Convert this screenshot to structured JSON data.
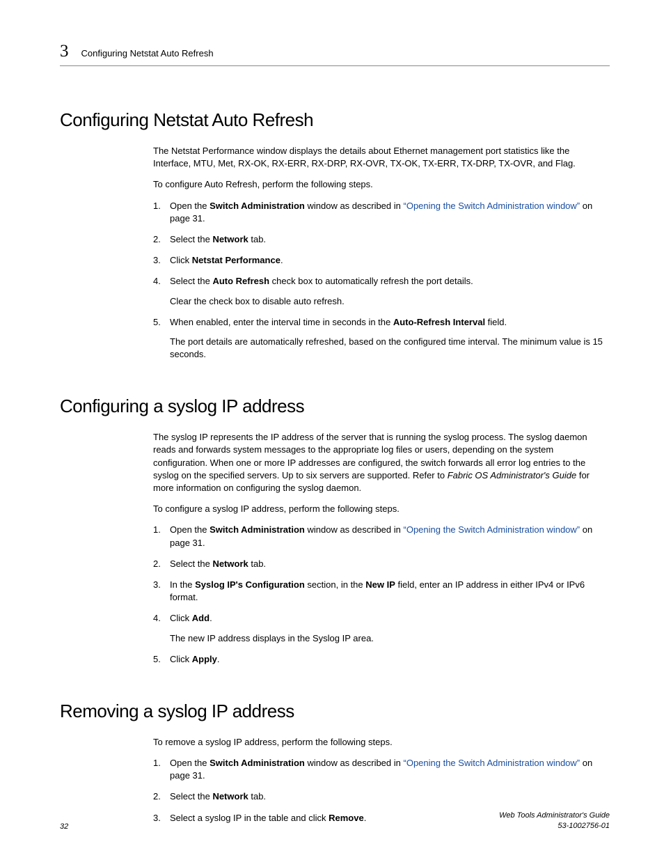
{
  "header": {
    "chapter": "3",
    "label": "Configuring Netstat Auto Refresh"
  },
  "section1": {
    "title": "Configuring Netstat Auto Refresh",
    "intro": "The Netstat Performance window displays the details about Ethernet management port statistics like the Interface, MTU, Met, RX-OK, RX-ERR, RX-DRP, RX-OVR, TX-OK, TX-ERR, TX-DRP, TX-OVR, and Flag.",
    "lead": "To configure Auto Refresh, perform the following steps.",
    "step1_a": "Open the ",
    "step1_bold": "Switch Administration",
    "step1_b": " window as described in ",
    "step1_link": "“Opening the Switch Administration window”",
    "step1_c": " on page 31.",
    "step2_a": "Select the ",
    "step2_bold": "Network",
    "step2_b": " tab.",
    "step3_a": "Click ",
    "step3_bold": "Netstat Performance",
    "step3_b": ".",
    "step4_a": "Select the ",
    "step4_bold": "Auto Refresh",
    "step4_b": " check box to automatically refresh the port details.",
    "step4_sub": "Clear the check box to disable auto refresh.",
    "step5_a": "When enabled, enter the interval time in seconds in the ",
    "step5_bold": "Auto-Refresh Interval",
    "step5_b": " field.",
    "step5_sub": "The port details are automatically refreshed, based on the configured time interval. The minimum value is 15 seconds."
  },
  "section2": {
    "title": "Configuring a syslog IP address",
    "intro_a": "The syslog IP represents the IP address of the server that is running the syslog process. The syslog daemon reads and forwards system messages to the appropriate log files or users, depending on the system configuration. When one or more IP addresses are configured, the switch forwards all error log entries to the syslog on the specified servers. Up to six servers are supported. Refer to ",
    "intro_italic": "Fabric OS Administrator's Guide",
    "intro_b": " for more information on configuring the syslog daemon.",
    "lead": "To configure a syslog IP address, perform the following steps.",
    "step1_a": "Open the ",
    "step1_bold": "Switch Administration",
    "step1_b": " window as described in ",
    "step1_link": "“Opening the Switch Administration window”",
    "step1_c": " on page 31.",
    "step2_a": "Select the ",
    "step2_bold": "Network",
    "step2_b": " tab.",
    "step3_a": "In the ",
    "step3_bold1": "Syslog IP's Configuration",
    "step3_b": " section, in the ",
    "step3_bold2": "New IP",
    "step3_c": " field, enter an IP address in either IPv4 or IPv6 format.",
    "step4_a": "Click ",
    "step4_bold": "Add",
    "step4_b": ".",
    "step4_sub": "The new IP address displays in the Syslog IP area.",
    "step5_a": "Click ",
    "step5_bold": "Apply",
    "step5_b": "."
  },
  "section3": {
    "title": "Removing a syslog IP address",
    "lead": "To remove a syslog IP address, perform the following steps.",
    "step1_a": "Open the ",
    "step1_bold": "Switch Administration",
    "step1_b": " window as described in ",
    "step1_link": "“Opening the Switch Administration window”",
    "step1_c": " on page 31.",
    "step2_a": "Select the ",
    "step2_bold": "Network",
    "step2_b": " tab.",
    "step3_a": "Select a syslog IP in the table and click ",
    "step3_bold": "Remove",
    "step3_b": "."
  },
  "footer": {
    "page": "32",
    "doc_title": "Web Tools Administrator's Guide",
    "doc_num": "53-1002756-01"
  }
}
